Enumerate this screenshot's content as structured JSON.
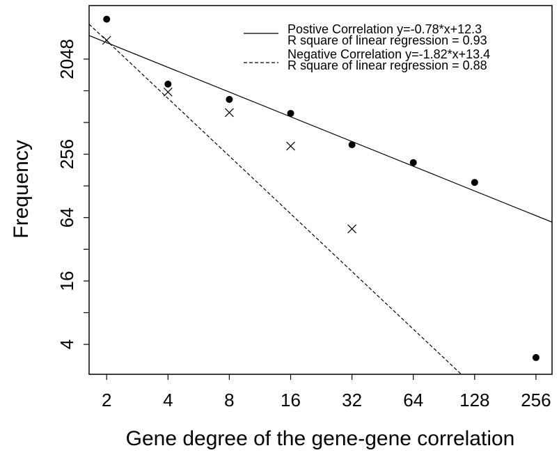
{
  "chart_data": {
    "type": "scatter",
    "x_label": "Gene degree of the gene-gene correlation",
    "y_label": "Frequency",
    "log_base": 2,
    "xlim": [
      1.64,
      307
    ],
    "ylim": [
      2.08,
      6600
    ],
    "xticks": [
      2,
      4,
      8,
      16,
      32,
      64,
      128,
      256
    ],
    "yticks": [
      4,
      16,
      64,
      256,
      2048
    ],
    "yticks_minor": [
      8,
      32,
      128,
      512,
      1024
    ],
    "color": "#000000",
    "series": [
      {
        "marker": "dot",
        "x": [
          2,
          4,
          8,
          16,
          32,
          64,
          128,
          256
        ],
        "values": [
          4900,
          1185,
          848,
          625,
          315,
          213,
          138,
          3
        ]
      },
      {
        "marker": "cross",
        "x": [
          2,
          4,
          8,
          16,
          32
        ],
        "values": [
          3090,
          996,
          636,
          306,
          50
        ]
      }
    ],
    "lines": [
      {
        "name": "Postive Correlation y=-0.78*x+12.3",
        "r_square_label": "R square of linear regression = 0.93",
        "slope": -0.78,
        "intercept": 12.3,
        "dashed": false
      },
      {
        "name": "Negative Correlation y=-1.82*x+13.4",
        "r_square_label": "R square of linear regression = 0.88",
        "slope": -1.82,
        "intercept": 13.4,
        "dashed": true
      }
    ]
  }
}
